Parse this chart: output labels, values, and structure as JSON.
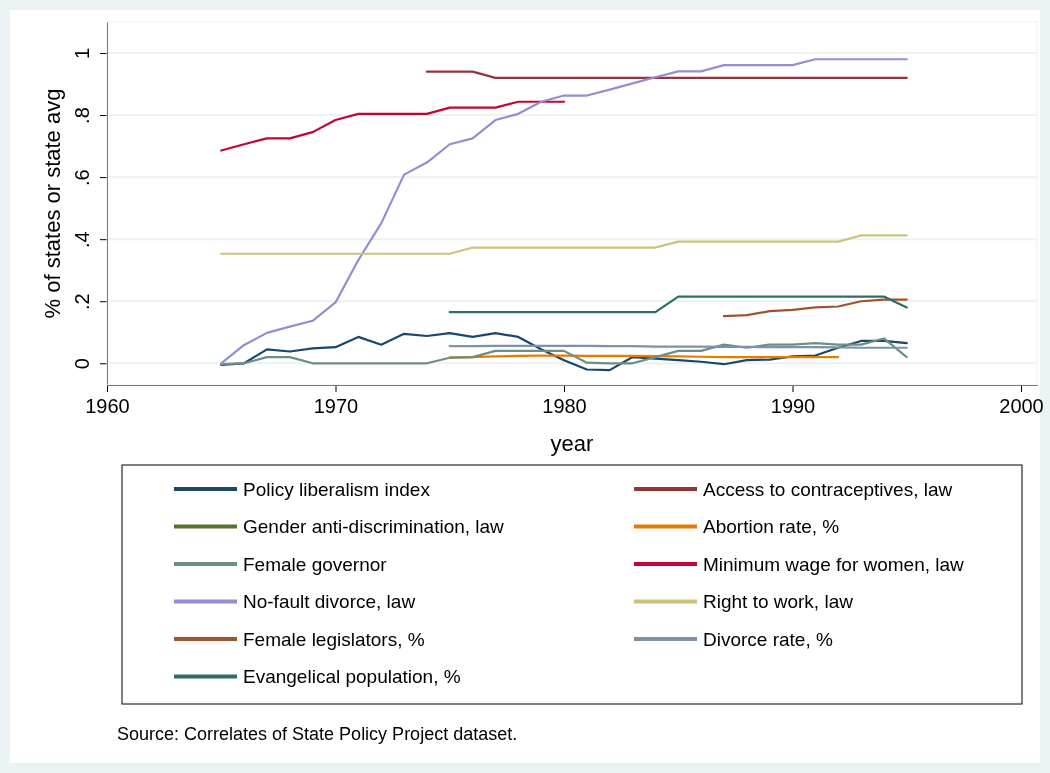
{
  "chart_data": {
    "type": "line",
    "xlabel": "year",
    "ylabel": "% of states or state avg",
    "xlim": [
      1960,
      2000.7
    ],
    "xticks": [
      1960,
      1970,
      1980,
      1990,
      2000
    ],
    "ylim": [
      -0.07,
      1.1
    ],
    "yticks": [
      0,
      {
        "value": 0.2,
        "label": ".2"
      },
      {
        "value": 0.4,
        "label": ".4"
      },
      {
        "value": 0.6,
        "label": ".6"
      },
      {
        "value": 0.8,
        "label": ".8"
      },
      1
    ],
    "grid": "y",
    "legend": "bottom",
    "marker": "none",
    "line_style": "solid",
    "annotations": [
      "Source: Correlates of State Policy Project dataset."
    ],
    "series": [
      {
        "name": "Policy liberalism index",
        "color": "#1a476f",
        "x": [
          1965,
          1966,
          1967,
          1968,
          1969,
          1970,
          1971,
          1972,
          1973,
          1974,
          1975,
          1976,
          1977,
          1978,
          1979,
          1980,
          1981,
          1982,
          1983,
          1984,
          1985,
          1986,
          1987,
          1988,
          1989,
          1990,
          1991,
          1992,
          1993,
          1994,
          1995
        ],
        "values": [
          -0.005,
          0,
          0.045,
          0.038,
          0.048,
          0.052,
          0.085,
          0.06,
          0.095,
          0.088,
          0.097,
          0.085,
          0.097,
          0.085,
          0.045,
          0.01,
          -0.02,
          -0.022,
          0.02,
          0.015,
          0.01,
          0.005,
          -0.003,
          0.01,
          0.012,
          0.022,
          0.025,
          0.05,
          0.072,
          0.072,
          0.065
        ]
      },
      {
        "name": "Access to contraceptives, law",
        "color": "#90353b",
        "x": [
          1974,
          1975,
          1976,
          1977,
          1978,
          1979,
          1980,
          1981,
          1982,
          1983,
          1984,
          1985,
          1986,
          1987,
          1988,
          1989,
          1990,
          1991,
          1992,
          1993,
          1994,
          1995
        ],
        "values": [
          0.94,
          0.94,
          0.94,
          0.92,
          0.92,
          0.92,
          0.92,
          0.92,
          0.92,
          0.92,
          0.92,
          0.92,
          0.92,
          0.92,
          0.92,
          0.92,
          0.92,
          0.92,
          0.92,
          0.92,
          0.92,
          0.92
        ]
      },
      {
        "name": "Gender anti-discrimination, law",
        "color": "#55752f"
      },
      {
        "name": "Abortion rate, %",
        "color": "#e37e00",
        "x": [
          1975,
          1976,
          1977,
          1978,
          1979,
          1980,
          1981,
          1982,
          1983,
          1984,
          1985,
          1986,
          1987,
          1988,
          1989,
          1990,
          1991,
          1992
        ],
        "values": [
          0.018,
          0.02,
          0.022,
          0.024,
          0.025,
          0.025,
          0.024,
          0.024,
          0.024,
          0.023,
          0.022,
          0.021,
          0.02,
          0.02,
          0.02,
          0.02,
          0.02,
          0.02
        ]
      },
      {
        "name": "Female governor",
        "color": "#6e8e84",
        "x": [
          1965,
          1966,
          1967,
          1968,
          1969,
          1970,
          1971,
          1972,
          1973,
          1974,
          1975,
          1976,
          1977,
          1978,
          1979,
          1980,
          1981,
          1982,
          1983,
          1984,
          1985,
          1986,
          1987,
          1988,
          1989,
          1990,
          1991,
          1992,
          1993,
          1994,
          1995
        ],
        "values": [
          -0.003,
          0,
          0.02,
          0.02,
          0,
          0,
          0,
          0,
          0,
          0,
          0.018,
          0.02,
          0.04,
          0.04,
          0.04,
          0.04,
          0.002,
          0,
          0,
          0.02,
          0.04,
          0.04,
          0.06,
          0.05,
          0.06,
          0.06,
          0.065,
          0.06,
          0.06,
          0.08,
          0.02
        ]
      },
      {
        "name": "Minimum wage for women, law",
        "color": "#c10534",
        "x": [
          1965,
          1966,
          1967,
          1968,
          1969,
          1970,
          1971,
          1972,
          1973,
          1974,
          1975,
          1976,
          1977,
          1978,
          1979,
          1980
        ],
        "values": [
          0.686,
          0.706,
          0.725,
          0.725,
          0.745,
          0.784,
          0.804,
          0.804,
          0.804,
          0.804,
          0.824,
          0.824,
          0.824,
          0.843,
          0.843,
          0.843
        ]
      },
      {
        "name": "No-fault divorce, law",
        "color": "#938dd2",
        "x": [
          1965,
          1966,
          1967,
          1968,
          1969,
          1970,
          1971,
          1972,
          1973,
          1974,
          1975,
          1976,
          1977,
          1978,
          1979,
          1980,
          1981,
          1982,
          1983,
          1984,
          1985,
          1986,
          1987,
          1988,
          1989,
          1990,
          1991,
          1992,
          1993,
          1994,
          1995
        ],
        "values": [
          0,
          0.059,
          0.098,
          0.118,
          0.137,
          0.196,
          0.333,
          0.451,
          0.608,
          0.647,
          0.706,
          0.725,
          0.784,
          0.804,
          0.843,
          0.863,
          0.863,
          0.882,
          0.902,
          0.922,
          0.941,
          0.941,
          0.961,
          0.961,
          0.961,
          0.961,
          0.98,
          0.98,
          0.98,
          0.98,
          0.98
        ]
      },
      {
        "name": "Right to work, law",
        "color": "#cac27e",
        "x": [
          1965,
          1966,
          1967,
          1968,
          1969,
          1970,
          1971,
          1972,
          1973,
          1974,
          1975,
          1976,
          1977,
          1978,
          1979,
          1980,
          1981,
          1982,
          1983,
          1984,
          1985,
          1986,
          1987,
          1988,
          1989,
          1990,
          1991,
          1992,
          1993,
          1994,
          1995
        ],
        "values": [
          0.353,
          0.353,
          0.353,
          0.353,
          0.353,
          0.353,
          0.353,
          0.353,
          0.353,
          0.353,
          0.353,
          0.373,
          0.373,
          0.373,
          0.373,
          0.373,
          0.373,
          0.373,
          0.373,
          0.373,
          0.392,
          0.392,
          0.392,
          0.392,
          0.392,
          0.392,
          0.392,
          0.392,
          0.412,
          0.412,
          0.412
        ]
      },
      {
        "name": "Female legislators, %",
        "color": "#a0522d",
        "x": [
          1987,
          1988,
          1989,
          1990,
          1991,
          1992,
          1993,
          1994,
          1995
        ],
        "values": [
          0.152,
          0.155,
          0.168,
          0.172,
          0.18,
          0.183,
          0.2,
          0.205,
          0.205
        ]
      },
      {
        "name": "Divorce rate, %",
        "color": "#7b92a8",
        "x": [
          1975,
          1976,
          1977,
          1978,
          1979,
          1980,
          1981,
          1982,
          1983,
          1984,
          1985,
          1986,
          1987,
          1988,
          1989,
          1990,
          1991,
          1992,
          1993,
          1994,
          1995
        ],
        "values": [
          0.055,
          0.055,
          0.056,
          0.056,
          0.056,
          0.056,
          0.056,
          0.055,
          0.055,
          0.054,
          0.054,
          0.054,
          0.053,
          0.053,
          0.052,
          0.052,
          0.052,
          0.051,
          0.05,
          0.05,
          0.05
        ]
      },
      {
        "name": "Evangelical population, %",
        "color": "#2d6d66",
        "x": [
          1975,
          1976,
          1977,
          1978,
          1979,
          1980,
          1981,
          1982,
          1983,
          1984,
          1985,
          1986,
          1987,
          1988,
          1989,
          1990,
          1991,
          1992,
          1993,
          1994,
          1995
        ],
        "values": [
          0.165,
          0.165,
          0.165,
          0.165,
          0.165,
          0.165,
          0.165,
          0.165,
          0.165,
          0.165,
          0.215,
          0.215,
          0.215,
          0.215,
          0.215,
          0.215,
          0.215,
          0.215,
          0.215,
          0.215,
          0.18
        ]
      }
    ]
  }
}
